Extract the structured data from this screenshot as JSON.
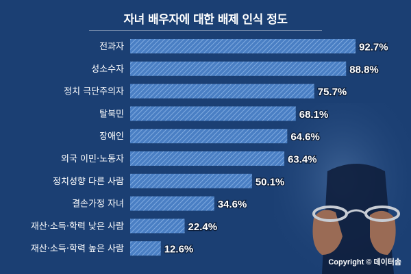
{
  "chart_data": {
    "type": "bar",
    "orientation": "horizontal",
    "title": "자녀 배우자에 대한 배제 인식 정도",
    "categories": [
      "전과자",
      "성소수자",
      "정치 극단주의자",
      "탈북민",
      "장애인",
      "외국 이민·노동자",
      "정치성향 다른 사람",
      "결손가정 자녀",
      "재산·소득·학력 낮은 사람",
      "재산·소득·학력 높은 사람"
    ],
    "values": [
      92.7,
      88.8,
      75.7,
      68.1,
      64.6,
      63.4,
      50.1,
      34.6,
      22.4,
      12.6
    ],
    "value_labels": [
      "92.7%",
      "88.8%",
      "75.7%",
      "68.1%",
      "64.6%",
      "63.4%",
      "50.1%",
      "34.6%",
      "22.4%",
      "12.6%"
    ],
    "unit": "%",
    "xlim": [
      0,
      100
    ],
    "grid": false,
    "legend": "none"
  },
  "colors": {
    "background": "#1b3f73",
    "bar": "#4a7fc4",
    "bar_stripe": "#8db5e6",
    "text": "#ffffff"
  },
  "copyright": "Copyright © 데이터솜"
}
